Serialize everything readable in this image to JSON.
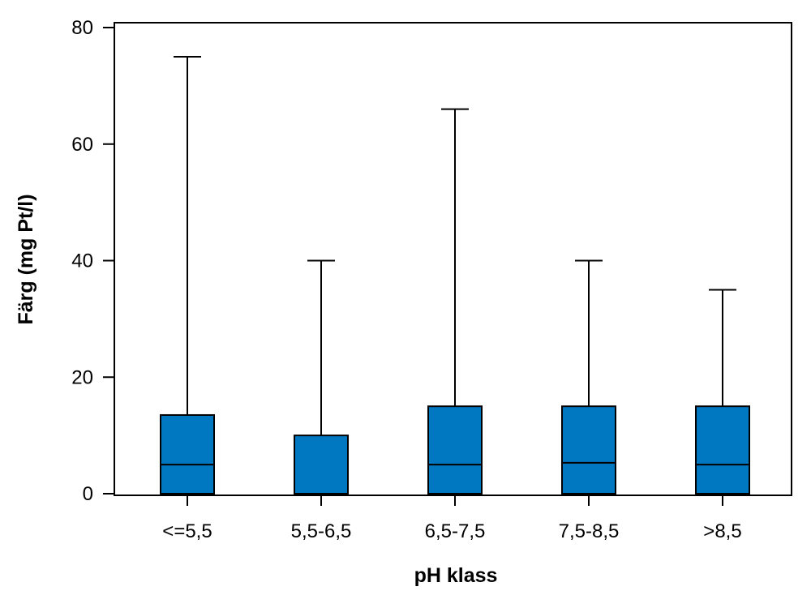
{
  "chart_data": {
    "type": "box",
    "xlabel": "pH klass",
    "ylabel": "Färg (mg Pt/l)",
    "ylim": [
      0,
      80
    ],
    "yticks": [
      0,
      20,
      40,
      60,
      80
    ],
    "grid": false,
    "box_color": "#0077c1",
    "categories": [
      "<=5,5",
      "5,5-6,5",
      "6,5-7,5",
      "7,5-8,5",
      ">8,5"
    ],
    "boxes": [
      {
        "min": 0,
        "q1": 0,
        "median": 5,
        "q3": 13.5,
        "max": 75
      },
      {
        "min": 0,
        "q1": 0,
        "median": 0,
        "q3": 10,
        "max": 40
      },
      {
        "min": 0,
        "q1": 0,
        "median": 5,
        "q3": 15,
        "max": 66
      },
      {
        "min": 0,
        "q1": 0,
        "median": 5.3,
        "q3": 15,
        "max": 40
      },
      {
        "min": 0,
        "q1": 0,
        "median": 5,
        "q3": 15,
        "max": 35
      }
    ]
  }
}
